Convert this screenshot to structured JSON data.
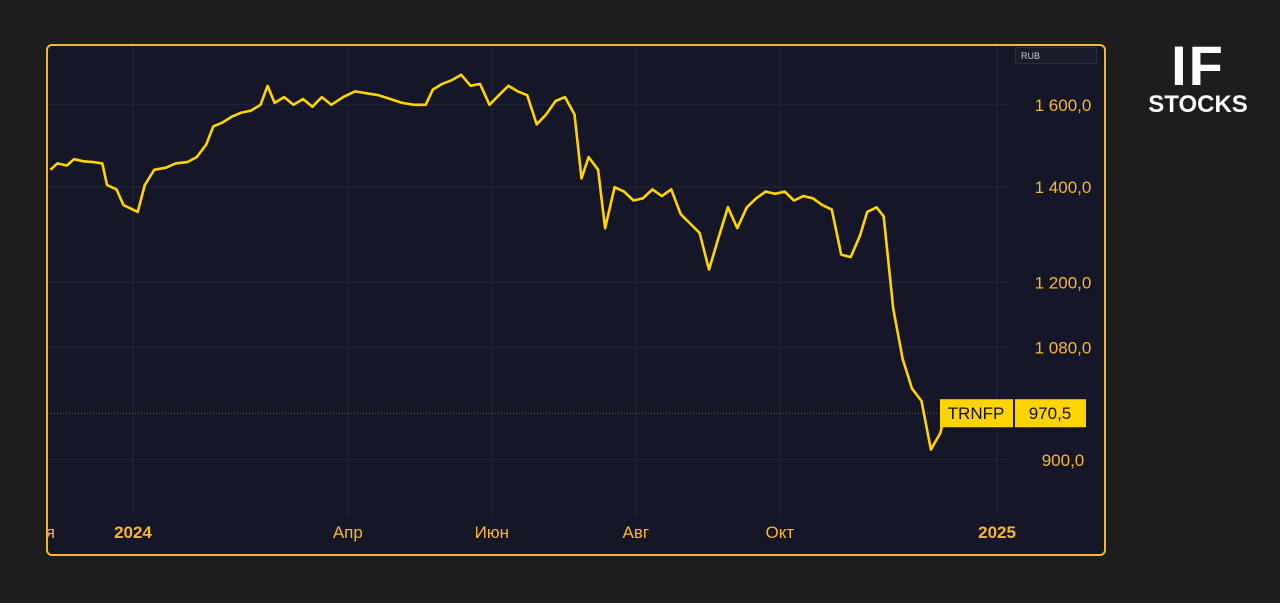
{
  "brand": {
    "line1": "IF",
    "line2": "STOCKS"
  },
  "currency": "RUB",
  "colors": {
    "page_bg": "#1d1d1d",
    "plot_bg": "#151728",
    "frame": "#f5b731",
    "line": "#ffd400",
    "axis_text": "#f5b731",
    "label_bg": "#ffd400",
    "label_text": "#111111"
  },
  "last_label": {
    "ticker": "TRNFP",
    "value": "970,5"
  },
  "chart_data": {
    "type": "line",
    "y_scale": "log",
    "ylim": [
      835,
      1760
    ],
    "x_range": [
      "2023-11-26",
      "2025-01-12"
    ],
    "y_ticks": [
      {
        "value": 1600,
        "label": "1 600,0"
      },
      {
        "value": 1400,
        "label": "1 400,0"
      },
      {
        "value": 1200,
        "label": "1 200,0"
      },
      {
        "value": 1080,
        "label": "1 080,0"
      },
      {
        "value": 900,
        "label": "900,0"
      }
    ],
    "x_ticks": [
      {
        "date": "2023-11-25",
        "label": "оя",
        "bold": false
      },
      {
        "date": "2024-01-01",
        "label": "2024",
        "bold": true
      },
      {
        "date": "2024-04-01",
        "label": "Апр",
        "bold": false
      },
      {
        "date": "2024-06-01",
        "label": "Июн",
        "bold": false
      },
      {
        "date": "2024-08-01",
        "label": "Авг",
        "bold": false
      },
      {
        "date": "2024-10-01",
        "label": "Окт",
        "bold": false
      },
      {
        "date": "2025-01-01",
        "label": "2025",
        "bold": true
      }
    ],
    "grid": true,
    "last_value_line": 970.5,
    "series": [
      {
        "name": "TRNFP",
        "points": [
          [
            "2023-11-27",
            1440
          ],
          [
            "2023-11-30",
            1455
          ],
          [
            "2023-12-04",
            1450
          ],
          [
            "2023-12-07",
            1465
          ],
          [
            "2023-12-11",
            1460
          ],
          [
            "2023-12-15",
            1458
          ],
          [
            "2023-12-19",
            1455
          ],
          [
            "2023-12-21",
            1405
          ],
          [
            "2023-12-25",
            1395
          ],
          [
            "2023-12-28",
            1360
          ],
          [
            "2024-01-03",
            1345
          ],
          [
            "2024-01-06",
            1405
          ],
          [
            "2024-01-10",
            1440
          ],
          [
            "2024-01-15",
            1445
          ],
          [
            "2024-01-19",
            1455
          ],
          [
            "2024-01-24",
            1458
          ],
          [
            "2024-01-28",
            1470
          ],
          [
            "2024-02-01",
            1500
          ],
          [
            "2024-02-04",
            1545
          ],
          [
            "2024-02-08",
            1555
          ],
          [
            "2024-02-12",
            1570
          ],
          [
            "2024-02-16",
            1580
          ],
          [
            "2024-02-20",
            1585
          ],
          [
            "2024-02-24",
            1600
          ],
          [
            "2024-02-27",
            1650
          ],
          [
            "2024-03-01",
            1605
          ],
          [
            "2024-03-05",
            1620
          ],
          [
            "2024-03-09",
            1600
          ],
          [
            "2024-03-13",
            1615
          ],
          [
            "2024-03-17",
            1595
          ],
          [
            "2024-03-21",
            1620
          ],
          [
            "2024-03-25",
            1600
          ],
          [
            "2024-03-30",
            1620
          ],
          [
            "2024-04-04",
            1635
          ],
          [
            "2024-04-09",
            1630
          ],
          [
            "2024-04-14",
            1625
          ],
          [
            "2024-04-19",
            1615
          ],
          [
            "2024-04-24",
            1605
          ],
          [
            "2024-04-29",
            1600
          ],
          [
            "2024-05-04",
            1600
          ],
          [
            "2024-05-07",
            1640
          ],
          [
            "2024-05-11",
            1655
          ],
          [
            "2024-05-15",
            1665
          ],
          [
            "2024-05-19",
            1680
          ],
          [
            "2024-05-23",
            1650
          ],
          [
            "2024-05-27",
            1655
          ],
          [
            "2024-05-31",
            1600
          ],
          [
            "2024-06-04",
            1625
          ],
          [
            "2024-06-08",
            1650
          ],
          [
            "2024-06-12",
            1635
          ],
          [
            "2024-06-16",
            1625
          ],
          [
            "2024-06-20",
            1550
          ],
          [
            "2024-06-24",
            1575
          ],
          [
            "2024-06-28",
            1610
          ],
          [
            "2024-07-02",
            1620
          ],
          [
            "2024-07-06",
            1575
          ],
          [
            "2024-07-09",
            1420
          ],
          [
            "2024-07-12",
            1470
          ],
          [
            "2024-07-16",
            1440
          ],
          [
            "2024-07-19",
            1310
          ],
          [
            "2024-07-23",
            1400
          ],
          [
            "2024-07-27",
            1390
          ],
          [
            "2024-07-31",
            1370
          ],
          [
            "2024-08-04",
            1375
          ],
          [
            "2024-08-08",
            1395
          ],
          [
            "2024-08-12",
            1380
          ],
          [
            "2024-08-16",
            1395
          ],
          [
            "2024-08-20",
            1340
          ],
          [
            "2024-08-24",
            1320
          ],
          [
            "2024-08-28",
            1300
          ],
          [
            "2024-09-01",
            1225
          ],
          [
            "2024-09-05",
            1290
          ],
          [
            "2024-09-09",
            1355
          ],
          [
            "2024-09-13",
            1310
          ],
          [
            "2024-09-17",
            1355
          ],
          [
            "2024-09-21",
            1375
          ],
          [
            "2024-09-25",
            1390
          ],
          [
            "2024-09-29",
            1385
          ],
          [
            "2024-10-03",
            1390
          ],
          [
            "2024-10-07",
            1370
          ],
          [
            "2024-10-11",
            1380
          ],
          [
            "2024-10-15",
            1375
          ],
          [
            "2024-10-19",
            1360
          ],
          [
            "2024-10-23",
            1350
          ],
          [
            "2024-10-27",
            1255
          ],
          [
            "2024-10-31",
            1250
          ],
          [
            "2024-11-04",
            1295
          ],
          [
            "2024-11-07",
            1345
          ],
          [
            "2024-11-11",
            1355
          ],
          [
            "2024-11-14",
            1335
          ],
          [
            "2024-11-18",
            1150
          ],
          [
            "2024-11-22",
            1060
          ],
          [
            "2024-11-26",
            1010
          ],
          [
            "2024-11-30",
            990
          ],
          [
            "2024-12-04",
            915
          ],
          [
            "2024-12-08",
            940
          ],
          [
            "2024-12-10",
            970.5
          ]
        ]
      }
    ]
  }
}
